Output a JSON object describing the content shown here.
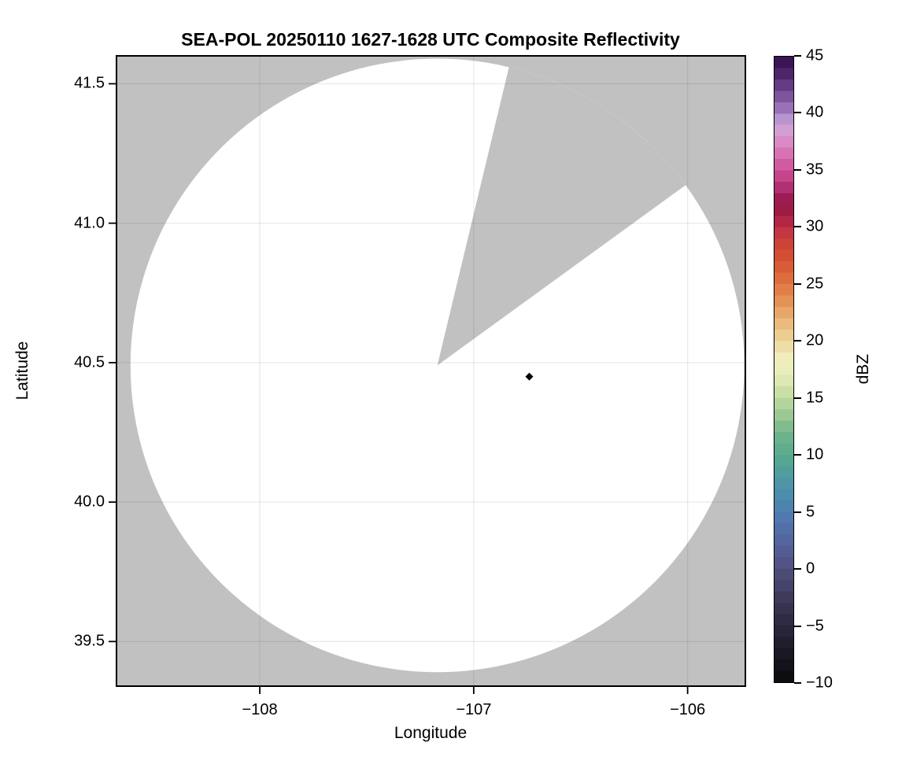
{
  "chart_data": {
    "type": "heatmap",
    "title": "SEA-POL 20250110 1627-1628 UTC Composite Reflectivity",
    "xlabel": "Longitude",
    "ylabel": "Latitude",
    "xlim": [
      -108.67,
      -105.73
    ],
    "ylim": [
      39.34,
      41.6
    ],
    "grid": true,
    "outside_coverage_color": "#c1c1c1",
    "coverage_fill_color": "#ffffff",
    "grid_color": "rgba(0,0,0,0.08)",
    "xticks": [
      {
        "value": -108,
        "label": "−108"
      },
      {
        "value": -107,
        "label": "−107"
      },
      {
        "value": -106,
        "label": "−106"
      }
    ],
    "yticks": [
      {
        "value": 41.5,
        "label": "41.5"
      },
      {
        "value": 41.0,
        "label": "41.0"
      },
      {
        "value": 40.5,
        "label": "40.5"
      },
      {
        "value": 40.0,
        "label": "40.0"
      },
      {
        "value": 39.5,
        "label": "39.5"
      }
    ],
    "radar_coverage": {
      "center_lon": -107.17,
      "center_lat": 40.49,
      "radius_lat_deg": 1.1,
      "no_data_sector_azimuth_deg": [
        13.5,
        54.0
      ],
      "note": "white disk = scanned area with reflectivity below color scale; gray wedge = unscanned sector"
    },
    "marker": {
      "lon": -106.74,
      "lat": 40.45,
      "shape": "diamond",
      "color": "#000000"
    },
    "colorbar": {
      "label": "dBZ",
      "min": -10,
      "max": 45,
      "band_step": 1,
      "ticks": [
        {
          "value": 45,
          "label": "45"
        },
        {
          "value": 40,
          "label": "40"
        },
        {
          "value": 35,
          "label": "35"
        },
        {
          "value": 30,
          "label": "30"
        },
        {
          "value": 25,
          "label": "25"
        },
        {
          "value": 20,
          "label": "20"
        },
        {
          "value": 15,
          "label": "15"
        },
        {
          "value": 10,
          "label": "10"
        },
        {
          "value": 5,
          "label": "5"
        },
        {
          "value": 0,
          "label": "0"
        },
        {
          "value": -5,
          "label": "−5"
        },
        {
          "value": -10,
          "label": "−10"
        }
      ],
      "color_stops": [
        [
          -10,
          "#0a0a0c"
        ],
        [
          -8,
          "#17151f"
        ],
        [
          -6,
          "#242133"
        ],
        [
          -5,
          "#2b2740"
        ],
        [
          -3,
          "#393655"
        ],
        [
          0,
          "#504f7d"
        ],
        [
          2,
          "#54619c"
        ],
        [
          4,
          "#5374ac"
        ],
        [
          5,
          "#4f7eb2"
        ],
        [
          7,
          "#4b90ab"
        ],
        [
          9,
          "#51a399"
        ],
        [
          10,
          "#58aa8e"
        ],
        [
          12,
          "#72b589"
        ],
        [
          14,
          "#a8d098"
        ],
        [
          16,
          "#d5e4aa"
        ],
        [
          18,
          "#f1f1c4"
        ],
        [
          19,
          "#f0e7b4"
        ],
        [
          20,
          "#edd399"
        ],
        [
          21,
          "#ecc489"
        ],
        [
          23,
          "#e69c5e"
        ],
        [
          25,
          "#e07542"
        ],
        [
          27,
          "#d55433"
        ],
        [
          29,
          "#c93f3a"
        ],
        [
          30,
          "#bd2f47"
        ],
        [
          31,
          "#a81f45"
        ],
        [
          32,
          "#911643"
        ],
        [
          33,
          "#a62464"
        ],
        [
          34,
          "#bd3a82"
        ],
        [
          35,
          "#cc4f97"
        ],
        [
          36,
          "#d466ab"
        ],
        [
          37,
          "#d97ebd"
        ],
        [
          38,
          "#d795cb"
        ],
        [
          39,
          "#cfa8da"
        ],
        [
          40,
          "#a580c2"
        ],
        [
          41,
          "#8a62a8"
        ],
        [
          42,
          "#714590"
        ],
        [
          43,
          "#592f77"
        ],
        [
          44,
          "#44195e"
        ],
        [
          45,
          "#330c49"
        ]
      ]
    }
  }
}
